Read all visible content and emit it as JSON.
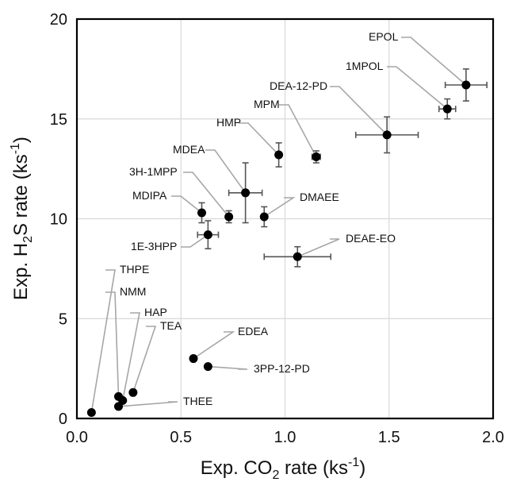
{
  "chart_data": {
    "type": "scatter",
    "xlabel": {
      "pre": "Exp.  CO",
      "sub": "2",
      "mid": " rate (ks",
      "sup": "-1",
      "post": ")"
    },
    "ylabel": {
      "pre": "Exp. H",
      "sub": "2",
      "mid": "S rate (ks",
      "sup": "-1",
      "post": ")"
    },
    "xlim": [
      0,
      2.0
    ],
    "ylim": [
      0,
      20
    ],
    "x_ticks": [
      "0.0",
      "0.5",
      "1.0",
      "1.5",
      "2.0"
    ],
    "y_ticks": [
      "0",
      "5",
      "10",
      "15",
      "20"
    ],
    "grid": true,
    "points": [
      {
        "name": "EPOL",
        "x": 1.87,
        "y": 16.7,
        "xerr": 0.1,
        "yerr": 0.8
      },
      {
        "name": "1MPOL",
        "x": 1.78,
        "y": 15.5,
        "xerr": 0.04,
        "yerr": 0.5
      },
      {
        "name": "DEA-12-PD",
        "x": 1.49,
        "y": 14.2,
        "xerr": 0.15,
        "yerr": 0.9
      },
      {
        "name": "MPM",
        "x": 1.15,
        "y": 13.1,
        "xerr": 0.02,
        "yerr": 0.3
      },
      {
        "name": "HMP",
        "x": 0.97,
        "y": 13.2,
        "xerr": 0.0,
        "yerr": 0.6
      },
      {
        "name": "MDEA",
        "x": 0.81,
        "y": 11.3,
        "xerr": 0.08,
        "yerr": 1.5
      },
      {
        "name": "3H-1MPP",
        "x": 0.73,
        "y": 10.1,
        "xerr": 0.0,
        "yerr": 0.3
      },
      {
        "name": "MDIPA",
        "x": 0.6,
        "y": 10.3,
        "xerr": 0.0,
        "yerr": 0.5
      },
      {
        "name": "DMAEE",
        "x": 0.9,
        "y": 10.1,
        "xerr": 0.0,
        "yerr": 0.5
      },
      {
        "name": "1E-3HPP",
        "x": 0.63,
        "y": 9.2,
        "xerr": 0.05,
        "yerr": 0.7
      },
      {
        "name": "DEAE-EO",
        "x": 1.06,
        "y": 8.1,
        "xerr": 0.16,
        "yerr": 0.5
      },
      {
        "name": "THPE",
        "x": 0.07,
        "y": 0.3,
        "xerr": 0.0,
        "yerr": 0.0
      },
      {
        "name": "NMM",
        "x": 0.2,
        "y": 1.1,
        "xerr": 0.0,
        "yerr": 0.0
      },
      {
        "name": "HAP",
        "x": 0.22,
        "y": 0.9,
        "xerr": 0.0,
        "yerr": 0.0
      },
      {
        "name": "TEA",
        "x": 0.27,
        "y": 1.3,
        "xerr": 0.0,
        "yerr": 0.0
      },
      {
        "name": "THEE",
        "x": 0.2,
        "y": 0.6,
        "xerr": 0.0,
        "yerr": 0.0
      },
      {
        "name": "EDEA",
        "x": 0.56,
        "y": 3.0,
        "xerr": 0.0,
        "yerr": 0.0
      },
      {
        "name": "3PP-12-PD",
        "x": 0.63,
        "y": 2.6,
        "xerr": 0.0,
        "yerr": 0.0
      }
    ],
    "colors": {
      "marker": "#000000",
      "errorbar": "#555555",
      "leader": "#a6a6a6",
      "grid": "#d9d9d9",
      "axis": "#000000"
    }
  }
}
